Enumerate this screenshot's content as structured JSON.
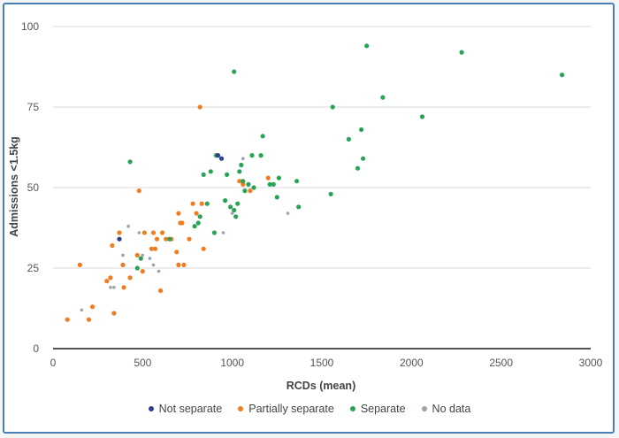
{
  "chart_data": {
    "type": "scatter",
    "title": "",
    "xlabel": "RCDs (mean)",
    "ylabel": "Admissions <1.5kg",
    "xlim": [
      0,
      3000
    ],
    "ylim": [
      0,
      100
    ],
    "x_ticks": [
      "0",
      "500",
      "1000",
      "1500",
      "2000",
      "2500",
      "3000"
    ],
    "y_ticks": [
      "0",
      "25",
      "50",
      "75",
      "100"
    ],
    "grid": "horizontal",
    "legend_position": "bottom",
    "series": [
      {
        "name": "Not separate",
        "color": "#2e3f8f",
        "points": [
          [
            370,
            34
          ],
          [
            920,
            60
          ],
          [
            940,
            59
          ]
        ]
      },
      {
        "name": "Partially separate",
        "color": "#f07d1f",
        "points": [
          [
            80,
            9
          ],
          [
            150,
            26
          ],
          [
            200,
            9
          ],
          [
            220,
            13
          ],
          [
            300,
            21
          ],
          [
            320,
            22
          ],
          [
            330,
            32
          ],
          [
            340,
            11
          ],
          [
            370,
            36
          ],
          [
            390,
            26
          ],
          [
            395,
            19
          ],
          [
            430,
            22
          ],
          [
            470,
            29
          ],
          [
            480,
            49
          ],
          [
            500,
            24
          ],
          [
            510,
            36
          ],
          [
            550,
            31
          ],
          [
            560,
            36
          ],
          [
            570,
            31
          ],
          [
            580,
            34
          ],
          [
            600,
            18
          ],
          [
            610,
            36
          ],
          [
            630,
            34
          ],
          [
            660,
            34
          ],
          [
            690,
            30
          ],
          [
            700,
            26
          ],
          [
            700,
            42
          ],
          [
            710,
            39
          ],
          [
            720,
            39
          ],
          [
            730,
            26
          ],
          [
            760,
            34
          ],
          [
            780,
            45
          ],
          [
            800,
            42
          ],
          [
            820,
            75
          ],
          [
            830,
            45
          ],
          [
            840,
            31
          ],
          [
            1040,
            52
          ],
          [
            1060,
            51
          ],
          [
            1100,
            49
          ],
          [
            1200,
            53
          ]
        ]
      },
      {
        "name": "Separate",
        "color": "#27a456",
        "points": [
          [
            430,
            58
          ],
          [
            470,
            25
          ],
          [
            490,
            28
          ],
          [
            650,
            34
          ],
          [
            790,
            38
          ],
          [
            810,
            39
          ],
          [
            820,
            41
          ],
          [
            840,
            54
          ],
          [
            860,
            45
          ],
          [
            880,
            55
          ],
          [
            900,
            36
          ],
          [
            910,
            60
          ],
          [
            960,
            46
          ],
          [
            970,
            54
          ],
          [
            990,
            44
          ],
          [
            1010,
            86
          ],
          [
            1010,
            43
          ],
          [
            1020,
            41
          ],
          [
            1030,
            45
          ],
          [
            1040,
            55
          ],
          [
            1050,
            57
          ],
          [
            1060,
            52
          ],
          [
            1070,
            49
          ],
          [
            1090,
            51
          ],
          [
            1110,
            60
          ],
          [
            1120,
            50
          ],
          [
            1160,
            60
          ],
          [
            1170,
            66
          ],
          [
            1210,
            51
          ],
          [
            1230,
            51
          ],
          [
            1250,
            47
          ],
          [
            1260,
            53
          ],
          [
            1360,
            52
          ],
          [
            1370,
            44
          ],
          [
            1550,
            48
          ],
          [
            1560,
            75
          ],
          [
            1650,
            65
          ],
          [
            1700,
            56
          ],
          [
            1720,
            68
          ],
          [
            1730,
            59
          ],
          [
            1750,
            94
          ],
          [
            1840,
            78
          ],
          [
            2060,
            72
          ],
          [
            2280,
            92
          ],
          [
            2840,
            85
          ]
        ]
      },
      {
        "name": "No data",
        "color": "#9aa2b0",
        "points": [
          [
            160,
            12
          ],
          [
            320,
            19
          ],
          [
            340,
            19
          ],
          [
            390,
            29
          ],
          [
            420,
            38
          ],
          [
            480,
            36
          ],
          [
            500,
            29
          ],
          [
            540,
            28
          ],
          [
            560,
            26
          ],
          [
            590,
            24
          ],
          [
            950,
            36
          ],
          [
            1000,
            42
          ],
          [
            1060,
            59
          ],
          [
            1310,
            42
          ]
        ]
      }
    ]
  }
}
